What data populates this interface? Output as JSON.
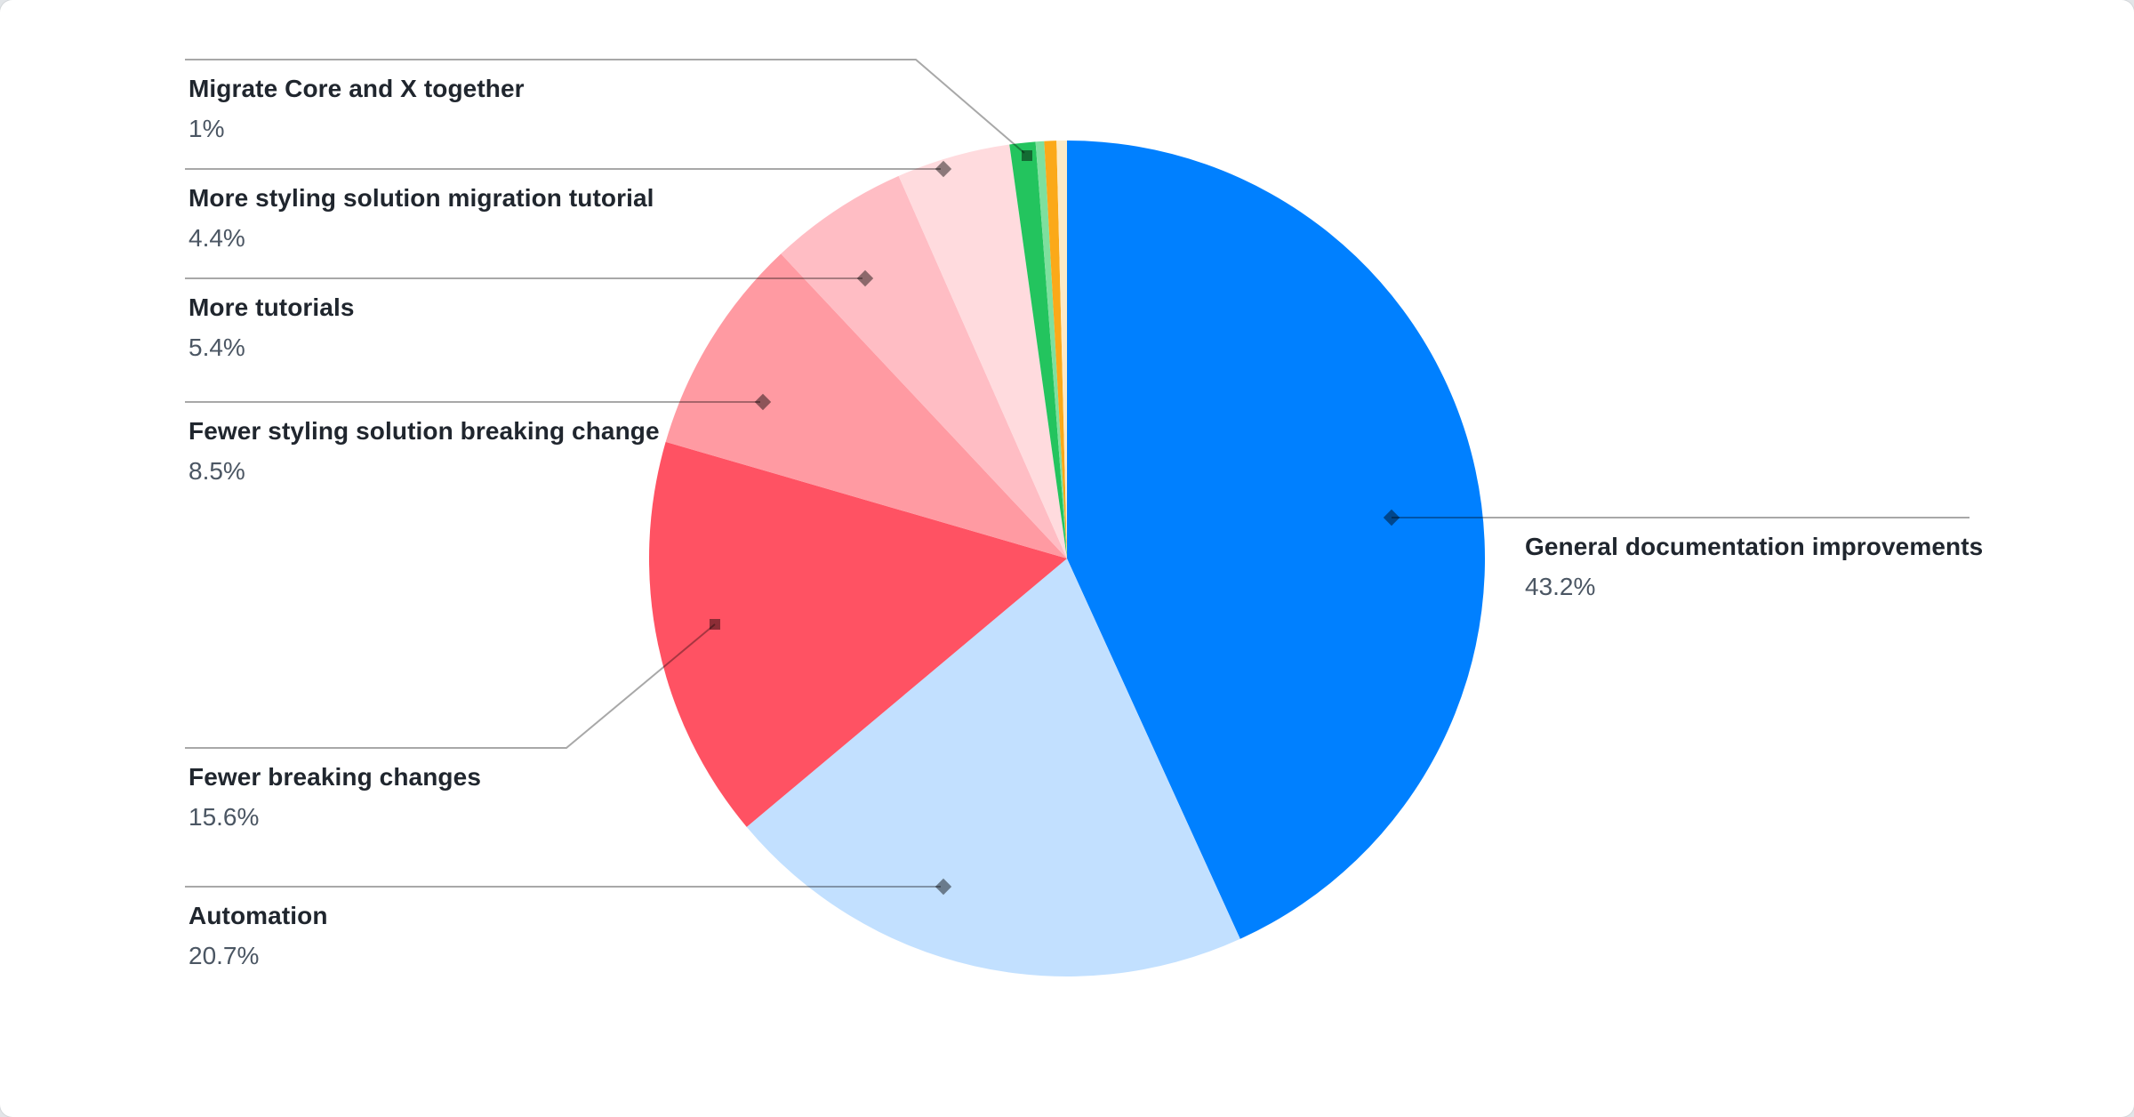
{
  "page": {
    "card_background": "#ffffff",
    "page_background": "#e2e5e8"
  },
  "chart_data": {
    "type": "pie",
    "title": "",
    "start_angle_deg": 0,
    "direction": "clockwise",
    "legend_position": "leader-lines",
    "leader_line_color": "#a8a8a8",
    "label_title_color": "#20262e",
    "label_pct_color": "#4b5663",
    "slices": [
      {
        "label": "General documentation improvements",
        "value": 43.2,
        "pct_label": "43.2%",
        "color": "#0080FF"
      },
      {
        "label": "Automation",
        "value": 20.7,
        "pct_label": "20.7%",
        "color": "#C2E0FF"
      },
      {
        "label": "Fewer breaking changes",
        "value": 15.6,
        "pct_label": "15.6%",
        "color": "#FF5263"
      },
      {
        "label": "Fewer styling solution breaking change",
        "value": 8.5,
        "pct_label": "8.5%",
        "color": "#FF9AA2"
      },
      {
        "label": "More tutorials",
        "value": 5.4,
        "pct_label": "5.4%",
        "color": "#FFBDC4"
      },
      {
        "label": "More styling solution migration tutorial",
        "value": 4.4,
        "pct_label": "4.4%",
        "color": "#FFDBDE"
      },
      {
        "label": "Migrate Core and X together",
        "value": 1,
        "pct_label": "1%",
        "color": "#23C45E"
      },
      {
        "label": "",
        "value": 0.33,
        "pct_label": "",
        "color": "#7EE09E"
      },
      {
        "label": "",
        "value": 0.47,
        "pct_label": "",
        "color": "#FBA919"
      },
      {
        "label": "",
        "value": 0.4,
        "pct_label": "",
        "color": "#FCEAC6"
      }
    ]
  }
}
